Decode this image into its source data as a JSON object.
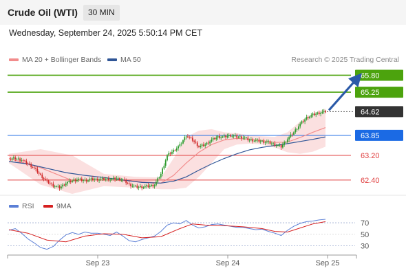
{
  "header": {
    "title": "Crude Oil (WTI)",
    "interval": "30 MIN"
  },
  "timestamp": "Wednesday, September 24, 2025 5:50:14 PM CET",
  "legend": {
    "ma20": {
      "label": "MA 20 + Bollinger Bands",
      "color": "#f28c8c"
    },
    "ma50": {
      "label": "MA 50",
      "color": "#2f5596"
    }
  },
  "copyright": "Research © 2025 Trading Central",
  "rsi_legend": {
    "rsi": {
      "label": "RSI",
      "color": "#5b7fd6"
    },
    "ma9": {
      "label": "9MA",
      "color": "#d62020"
    }
  },
  "chart_data": [
    {
      "type": "candlestick",
      "title": "Crude Oil (WTI)",
      "ylim": [
        61.95,
        66.1
      ],
      "x_ticks": [
        "Sep 23",
        "Sep 24",
        "Sep 25"
      ],
      "current_price": "64.62",
      "levels": [
        {
          "label": "65.80",
          "value": 65.8,
          "role": "resistance target",
          "color": "#4ca30d"
        },
        {
          "label": "65.25",
          "value": 65.25,
          "role": "resistance",
          "color": "#4ca30d"
        },
        {
          "label": "64.62",
          "value": 64.62,
          "role": "last price",
          "color": "#333333"
        },
        {
          "label": "63.85",
          "value": 63.85,
          "role": "pivot",
          "color": "#1b6ae4"
        },
        {
          "label": "63.20",
          "value": 63.2,
          "role": "support",
          "color": "#e04040"
        },
        {
          "label": "62.40",
          "value": 62.4,
          "role": "support",
          "color": "#e04040"
        }
      ],
      "close_path": [
        [
          0,
          63.08
        ],
        [
          4,
          63.1
        ],
        [
          8,
          63.05
        ],
        [
          12,
          62.93
        ],
        [
          16,
          62.78
        ],
        [
          20,
          62.55
        ],
        [
          24,
          62.35
        ],
        [
          28,
          62.22
        ],
        [
          32,
          62.15
        ],
        [
          36,
          62.3
        ],
        [
          40,
          62.38
        ],
        [
          44,
          62.42
        ],
        [
          48,
          62.38
        ],
        [
          52,
          62.42
        ],
        [
          56,
          62.42
        ],
        [
          60,
          62.43
        ],
        [
          64,
          62.42
        ],
        [
          68,
          62.45
        ],
        [
          72,
          62.4
        ],
        [
          76,
          62.25
        ],
        [
          80,
          62.18
        ],
        [
          84,
          62.17
        ],
        [
          88,
          62.2
        ],
        [
          92,
          62.24
        ],
        [
          96,
          62.6
        ],
        [
          100,
          63.2
        ],
        [
          104,
          63.35
        ],
        [
          108,
          63.53
        ],
        [
          112,
          63.85
        ],
        [
          116,
          63.7
        ],
        [
          120,
          63.48
        ],
        [
          124,
          63.55
        ],
        [
          128,
          63.7
        ],
        [
          132,
          63.8
        ],
        [
          136,
          63.8
        ],
        [
          140,
          63.85
        ],
        [
          144,
          63.8
        ],
        [
          148,
          63.78
        ],
        [
          152,
          63.7
        ],
        [
          156,
          63.68
        ],
        [
          160,
          63.65
        ],
        [
          164,
          63.62
        ],
        [
          168,
          63.55
        ],
        [
          172,
          63.48
        ],
        [
          176,
          63.73
        ],
        [
          180,
          63.95
        ],
        [
          184,
          64.22
        ],
        [
          188,
          64.42
        ],
        [
          192,
          64.52
        ],
        [
          196,
          64.58
        ],
        [
          200,
          64.62
        ]
      ],
      "ma20_path": [
        [
          0,
          63.1
        ],
        [
          20,
          62.8
        ],
        [
          40,
          62.38
        ],
        [
          60,
          62.41
        ],
        [
          80,
          62.36
        ],
        [
          96,
          62.3
        ],
        [
          104,
          62.55
        ],
        [
          112,
          62.95
        ],
        [
          120,
          63.3
        ],
        [
          128,
          63.55
        ],
        [
          136,
          63.7
        ],
        [
          144,
          63.75
        ],
        [
          152,
          63.72
        ],
        [
          160,
          63.68
        ],
        [
          168,
          63.62
        ],
        [
          176,
          63.63
        ],
        [
          184,
          63.78
        ],
        [
          192,
          63.95
        ],
        [
          200,
          64.1
        ]
      ],
      "ma50_path": [
        [
          0,
          63.0
        ],
        [
          12,
          62.92
        ],
        [
          24,
          62.78
        ],
        [
          36,
          62.64
        ],
        [
          48,
          62.55
        ],
        [
          60,
          62.48
        ],
        [
          72,
          62.4
        ],
        [
          84,
          62.32
        ],
        [
          96,
          62.3
        ],
        [
          104,
          62.36
        ],
        [
          112,
          62.5
        ],
        [
          120,
          62.72
        ],
        [
          128,
          62.92
        ],
        [
          136,
          63.1
        ],
        [
          144,
          63.25
        ],
        [
          152,
          63.38
        ],
        [
          160,
          63.46
        ],
        [
          168,
          63.52
        ],
        [
          176,
          63.58
        ],
        [
          184,
          63.65
        ],
        [
          192,
          63.72
        ],
        [
          200,
          63.8
        ]
      ],
      "bb_upper": [
        [
          0,
          63.25
        ],
        [
          20,
          63.4
        ],
        [
          40,
          63.2
        ],
        [
          60,
          62.6
        ],
        [
          80,
          62.5
        ],
        [
          96,
          62.48
        ],
        [
          104,
          63.1
        ],
        [
          112,
          63.8
        ],
        [
          120,
          64.0
        ],
        [
          128,
          64.05
        ],
        [
          136,
          63.95
        ],
        [
          144,
          63.92
        ],
        [
          152,
          63.85
        ],
        [
          160,
          63.82
        ],
        [
          168,
          63.8
        ],
        [
          176,
          63.95
        ],
        [
          184,
          64.3
        ],
        [
          192,
          64.55
        ],
        [
          200,
          64.72
        ]
      ],
      "bb_lower": [
        [
          0,
          62.95
        ],
        [
          20,
          62.25
        ],
        [
          40,
          61.95
        ],
        [
          60,
          62.2
        ],
        [
          80,
          62.15
        ],
        [
          96,
          62.1
        ],
        [
          104,
          62.1
        ],
        [
          112,
          62.15
        ],
        [
          120,
          62.5
        ],
        [
          128,
          62.95
        ],
        [
          136,
          63.4
        ],
        [
          144,
          63.55
        ],
        [
          152,
          63.58
        ],
        [
          160,
          63.55
        ],
        [
          168,
          63.45
        ],
        [
          176,
          63.3
        ],
        [
          184,
          63.25
        ],
        [
          192,
          63.32
        ],
        [
          200,
          63.48
        ]
      ],
      "forecast_arrow": {
        "from": [
          200,
          64.62
        ],
        "to": [
          222,
          65.8
        ]
      }
    },
    {
      "type": "line",
      "title": "RSI",
      "ylim": [
        20,
        82
      ],
      "y_ticks": [
        70,
        50,
        30
      ],
      "series": [
        {
          "name": "RSI",
          "color": "#5b7fd6",
          "values": [
            [
              0,
              57
            ],
            [
              4,
              60
            ],
            [
              8,
              52
            ],
            [
              12,
              42
            ],
            [
              16,
              35
            ],
            [
              20,
              27
            ],
            [
              24,
              24
            ],
            [
              28,
              29
            ],
            [
              32,
              40
            ],
            [
              36,
              49
            ],
            [
              40,
              53
            ],
            [
              44,
              50
            ],
            [
              48,
              54
            ],
            [
              52,
              52
            ],
            [
              56,
              52
            ],
            [
              60,
              50
            ],
            [
              64,
              48
            ],
            [
              68,
              54
            ],
            [
              72,
              47
            ],
            [
              76,
              39
            ],
            [
              80,
              37
            ],
            [
              84,
              41
            ],
            [
              88,
              44
            ],
            [
              92,
              47
            ],
            [
              96,
              55
            ],
            [
              100,
              66
            ],
            [
              104,
              70
            ],
            [
              108,
              68
            ],
            [
              112,
              74
            ],
            [
              116,
              66
            ],
            [
              120,
              61
            ],
            [
              124,
              63
            ],
            [
              128,
              67
            ],
            [
              132,
              68
            ],
            [
              136,
              66
            ],
            [
              140,
              64
            ],
            [
              144,
              62
            ],
            [
              148,
              62
            ],
            [
              152,
              60
            ],
            [
              156,
              58
            ],
            [
              160,
              59
            ],
            [
              164,
              55
            ],
            [
              168,
              52
            ],
            [
              172,
              48
            ],
            [
              176,
              57
            ],
            [
              180,
              64
            ],
            [
              184,
              69
            ],
            [
              188,
              72
            ],
            [
              192,
              73
            ],
            [
              196,
              75
            ],
            [
              200,
              76
            ]
          ]
        },
        {
          "name": "9MA",
          "color": "#d62020",
          "values": [
            [
              0,
              58
            ],
            [
              12,
              52
            ],
            [
              24,
              40
            ],
            [
              36,
              37
            ],
            [
              48,
              47
            ],
            [
              60,
              51
            ],
            [
              72,
              50
            ],
            [
              84,
              44
            ],
            [
              96,
              46
            ],
            [
              108,
              60
            ],
            [
              116,
              68
            ],
            [
              124,
              66
            ],
            [
              136,
              65
            ],
            [
              148,
              63
            ],
            [
              160,
              60
            ],
            [
              168,
              55
            ],
            [
              176,
              54
            ],
            [
              184,
              61
            ],
            [
              192,
              68
            ],
            [
              200,
              72
            ]
          ]
        }
      ]
    }
  ]
}
